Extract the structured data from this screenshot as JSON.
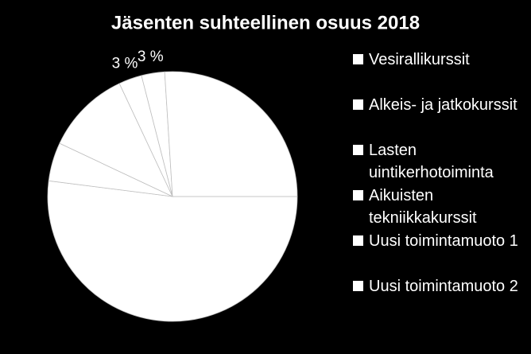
{
  "chart_data": {
    "type": "pie",
    "title": "Jäsenten suhteellinen osuus 2018",
    "categories": [
      "Vesirallikurssit",
      "Alkeis- ja jatkokurssit",
      "Lasten uintikerhotoiminta",
      "Aikuisten tekniikkakurssit",
      "Uusi toimintamuoto 1",
      "Uusi toimintamuoto 2"
    ],
    "values": [
      52,
      5,
      11,
      3,
      3,
      26
    ],
    "value_labels": [
      null,
      null,
      null,
      "3 %",
      "3 %",
      null
    ],
    "colors": [
      "#ffffff",
      "#ffffff",
      "#ffffff",
      "#ffffff",
      "#ffffff",
      "#ffffff"
    ],
    "legend": "right"
  }
}
